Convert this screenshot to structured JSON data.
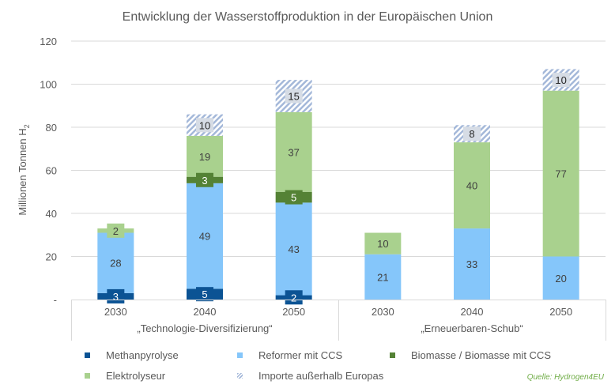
{
  "chart_data": {
    "type": "bar",
    "stacked": true,
    "title": "Entwicklung der Wasserstoffproduktion in der Europäischen Union",
    "xlabel": "",
    "ylabel": "Millionen Tonnen H",
    "ylabel_subscript": "2",
    "ylim": [
      0,
      120
    ],
    "yticks": [
      0,
      20,
      40,
      60,
      80,
      100,
      120
    ],
    "ytick_labels": [
      "-",
      "20",
      "40",
      "60",
      "80",
      "100",
      "120"
    ],
    "grid": true,
    "legend_position": "bottom",
    "groups": [
      {
        "label": "„Technologie-Diversifizierung“",
        "categories": [
          "2030",
          "2040",
          "2050"
        ]
      },
      {
        "label": "„Erneuerbaren-Schub“",
        "categories": [
          "2030",
          "2040",
          "2050"
        ]
      }
    ],
    "categories": [
      "2030",
      "2040",
      "2050",
      "2030",
      "2040",
      "2050"
    ],
    "series": [
      {
        "name": "Methanpyrolyse",
        "color": "#0b5394",
        "label_color": "#ffffff",
        "pattern": "solid",
        "values": [
          3,
          5,
          2,
          0,
          0,
          0
        ]
      },
      {
        "name": "Reformer mit CCS",
        "color": "#85c6fa",
        "label_color": "#404040",
        "pattern": "solid",
        "values": [
          28,
          49,
          43,
          21,
          33,
          20
        ]
      },
      {
        "name": "Biomasse / Biomasse mit CCS",
        "color": "#548235",
        "label_color": "#ffffff",
        "pattern": "solid",
        "values": [
          0,
          3,
          5,
          0,
          0,
          0
        ]
      },
      {
        "name": "Elektrolyseur",
        "color": "#a9d18e",
        "label_color": "#404040",
        "pattern": "solid",
        "values": [
          2,
          19,
          37,
          10,
          40,
          77
        ]
      },
      {
        "name": "Importe außerhalb Europas",
        "color": "#a4b8d9",
        "label_color": "#262626",
        "pattern": "hatch",
        "values": [
          0,
          10,
          15,
          0,
          8,
          10
        ]
      }
    ],
    "legend_order": [
      0,
      1,
      2,
      3,
      4
    ]
  },
  "source": "Quelle: Hydrogen4EU"
}
